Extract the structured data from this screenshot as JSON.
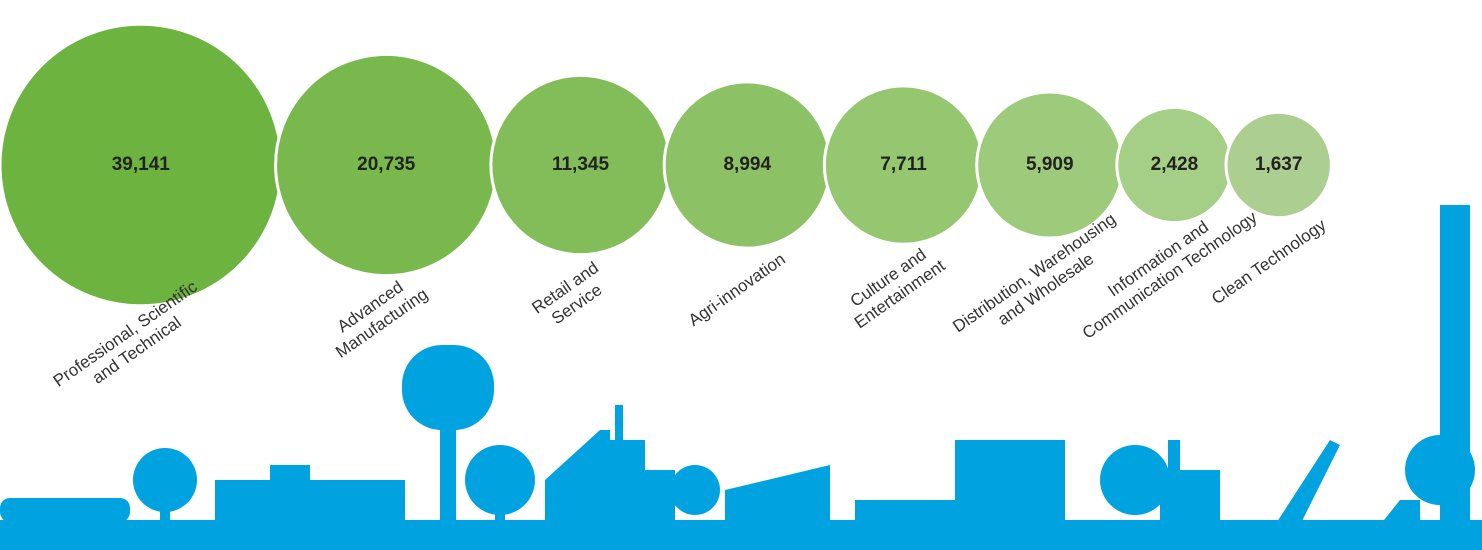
{
  "chart_data": {
    "type": "bubble",
    "categories": [
      "Professional, Scientific\nand Technical",
      "Advanced\nManufacturing",
      "Retail and\nService",
      "Agri-innovation",
      "Culture and\nEntertainment",
      "Distribution, Warehousing\nand Wholesale",
      "Information and\nCommunication Technology",
      "Clean Technology"
    ],
    "values": [
      39141,
      20735,
      11345,
      8994,
      7711,
      5909,
      2428,
      1637
    ],
    "value_labels": [
      "39,141",
      "20,735",
      "11,345",
      "8,994",
      "7,711",
      "5,909",
      "2,428",
      "1,637"
    ],
    "colors": [
      "#6db33f",
      "#79b84c",
      "#83bd59",
      "#8cc265",
      "#95c670",
      "#9dca7b",
      "#a5ce86",
      "#accf91"
    ]
  }
}
